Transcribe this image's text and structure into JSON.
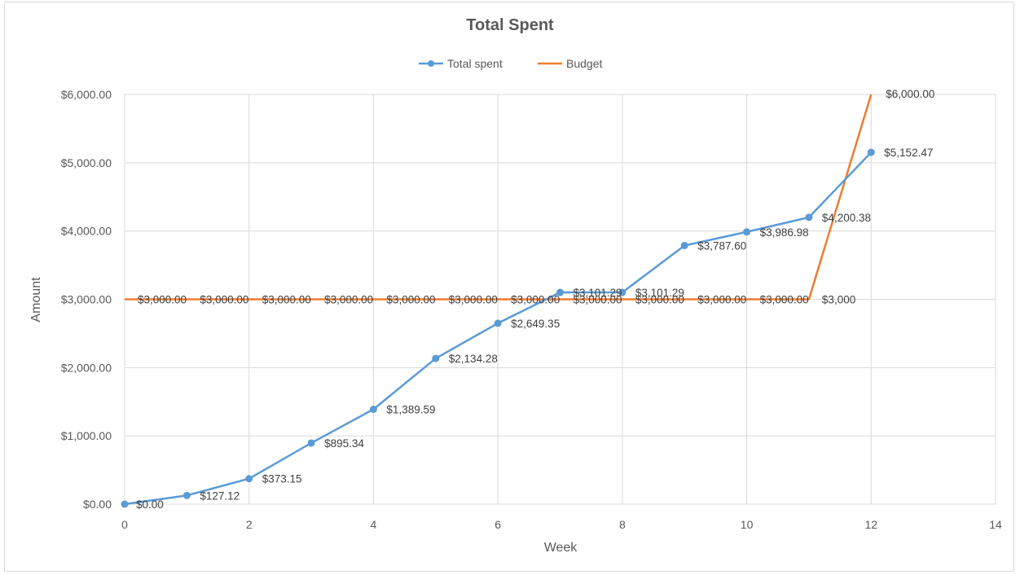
{
  "chart_data": {
    "type": "line",
    "title": "Total Spent",
    "xlabel": "Week",
    "ylabel": "Amount",
    "xlim": [
      0,
      14
    ],
    "ylim": [
      0,
      6000
    ],
    "x_ticks": [
      "0",
      "2",
      "4",
      "6",
      "8",
      "10",
      "12",
      "14"
    ],
    "y_ticks": [
      "$0.00",
      "$1,000.00",
      "$2,000.00",
      "$3,000.00",
      "$4,000.00",
      "$5,000.00",
      "$6,000.00"
    ],
    "grid": true,
    "legend": "top",
    "series": [
      {
        "name": "Total spent",
        "color": "#5b9bd5",
        "markers": true,
        "x": [
          0,
          1,
          2,
          3,
          4,
          5,
          6,
          7,
          8,
          9,
          10,
          11,
          12
        ],
        "y": [
          0,
          127.12,
          373.15,
          895.34,
          1389.59,
          2134.28,
          2649.35,
          3101.29,
          3101.29,
          3787.6,
          3986.98,
          4200.38,
          5152.47
        ],
        "labels": [
          "$0.00",
          "$127.12",
          "$373.15",
          "$895.34",
          "$1,389.59",
          "$2,134.28",
          "$2,649.35",
          "$3,101.29",
          "$3,101.29",
          "$3,787.60",
          "$3,986.98",
          "$4,200.38",
          "$5,152.47"
        ]
      },
      {
        "name": "Budget",
        "color": "#ed7d31",
        "markers": false,
        "x": [
          0,
          1,
          2,
          3,
          4,
          5,
          6,
          7,
          8,
          9,
          10,
          11,
          12
        ],
        "y": [
          3000,
          3000,
          3000,
          3000,
          3000,
          3000,
          3000,
          3000,
          3000,
          3000,
          3000,
          3000,
          6000
        ],
        "labels": [
          "$3,000.00",
          "$3,000.00",
          "$3,000.00",
          "$3,000.00",
          "$3,000.00",
          "$3,000.00",
          "$3,000.00",
          "$3,000.00",
          "$3,000.00",
          "$3,000.00",
          "$3,000.00",
          "$3,000",
          "$6,000.00"
        ]
      }
    ]
  }
}
